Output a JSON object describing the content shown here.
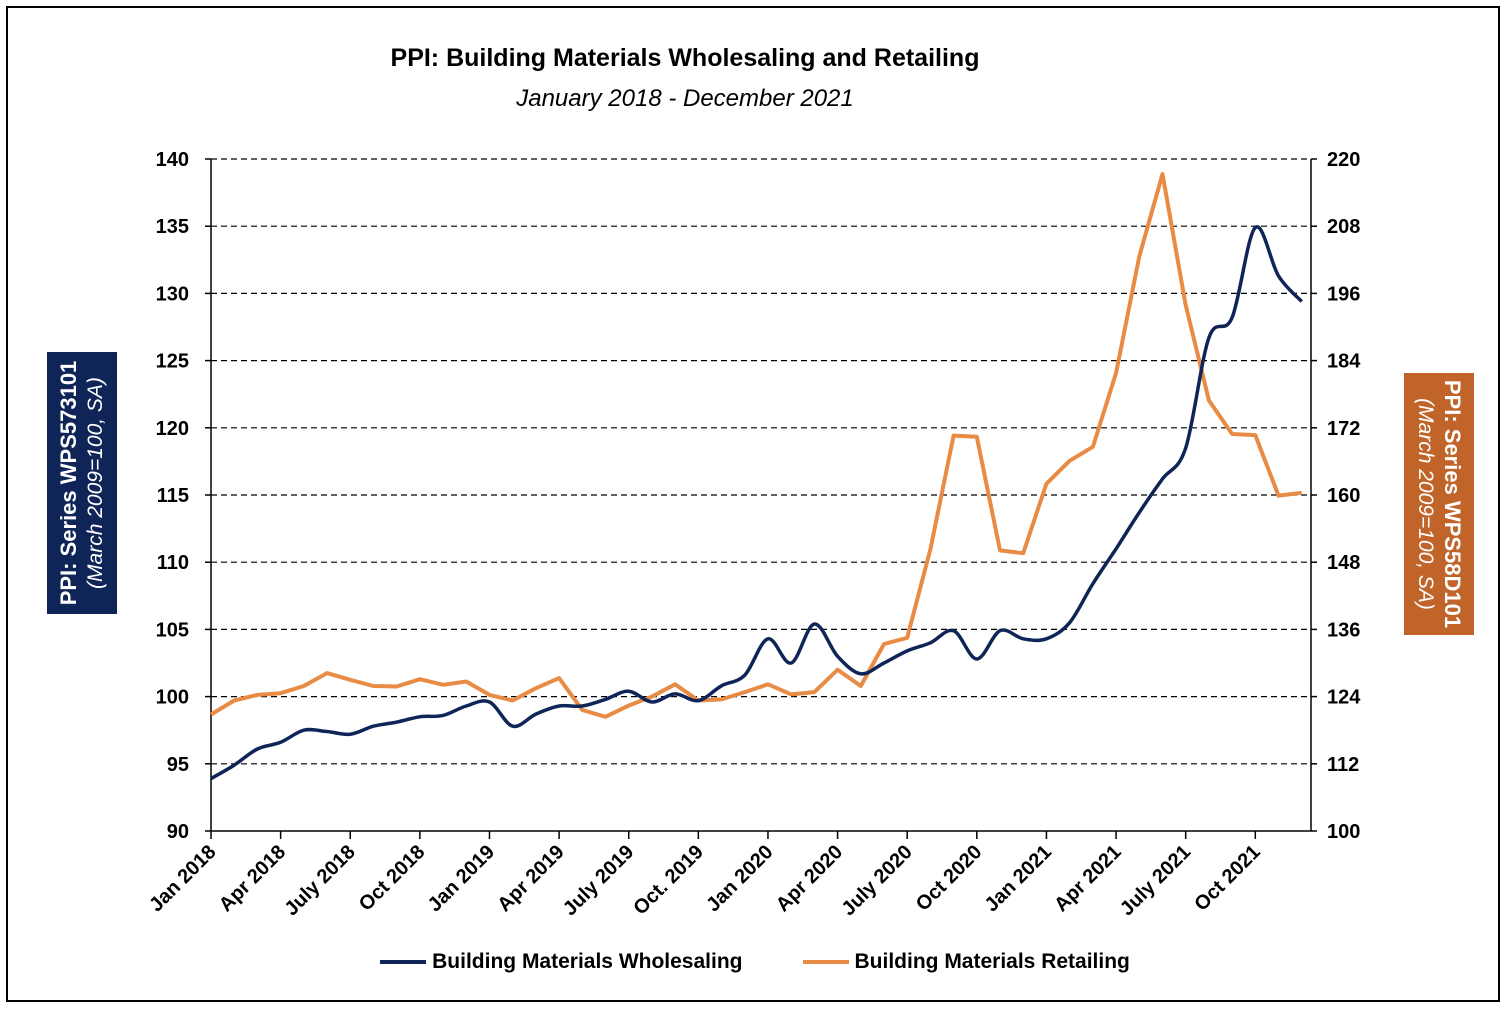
{
  "chart_data": {
    "type": "line",
    "title": "PPI: Building Materials Wholesaling and Retailing",
    "subtitle": "January 2018 - December 2021",
    "y_left_label": [
      "PPI: Series WPS573101",
      "(March 2009=100, SA)"
    ],
    "y_right_label": [
      "PPI: Series WPS58D101",
      "(March 2009=100, SA)"
    ],
    "y_left_lim": [
      90,
      140
    ],
    "y_left_ticks": [
      "90",
      "95",
      "100",
      "105",
      "110",
      "115",
      "120",
      "125",
      "130",
      "135",
      "140"
    ],
    "y_right_lim": [
      100,
      220
    ],
    "y_right_ticks": [
      "100",
      "112",
      "124",
      "136",
      "148",
      "160",
      "172",
      "184",
      "196",
      "208",
      "220"
    ],
    "x_tick_labels": [
      "Jan 2018",
      "Apr 2018",
      "July 2018",
      "Oct 2018",
      "Jan 2019",
      "Apr 2019",
      "July 2019",
      "Oct. 2019",
      "Jan 2020",
      "Apr 2020",
      "July 2020",
      "Oct 2020",
      "Jan 2021",
      "Apr 2021",
      "July 2021",
      "Oct 2021"
    ],
    "grid": "horizontal dashed",
    "legend_position": "bottom",
    "series": [
      {
        "name": "Building Materials Wholesaling",
        "axis": "left",
        "color": "#0f2557",
        "values": [
          93.9,
          94.9,
          96.1,
          96.6,
          97.5,
          97.4,
          97.2,
          97.8,
          98.1,
          98.5,
          98.6,
          99.3,
          99.6,
          97.8,
          98.7,
          99.3,
          99.3,
          99.8,
          100.4,
          99.6,
          100.2,
          99.7,
          100.8,
          101.6,
          104.3,
          102.5,
          105.4,
          103.0,
          101.7,
          102.5,
          103.4,
          104.0,
          104.9,
          102.8,
          104.9,
          104.3,
          104.3,
          105.5,
          108.4,
          111.0,
          113.7,
          116.2,
          118.5,
          126.7,
          128.2,
          134.9,
          131.3,
          129.4
        ]
      },
      {
        "name": "Building Materials Retailing",
        "axis": "right",
        "color": "#e88b45",
        "values": [
          120.8,
          123.3,
          124.3,
          124.6,
          125.9,
          128.2,
          127.0,
          125.9,
          125.8,
          127.1,
          126.1,
          126.7,
          124.3,
          123.3,
          125.5,
          127.3,
          121.6,
          120.4,
          122.4,
          124.0,
          126.2,
          123.3,
          123.5,
          124.8,
          126.2,
          124.4,
          124.8,
          128.8,
          125.9,
          133.4,
          134.5,
          150.3,
          170.6,
          170.4,
          150.1,
          149.6,
          162.0,
          166.1,
          168.6,
          181.8,
          202.6,
          217.3,
          193.9,
          176.9,
          170.9,
          170.7,
          159.9,
          160.4
        ]
      }
    ]
  }
}
